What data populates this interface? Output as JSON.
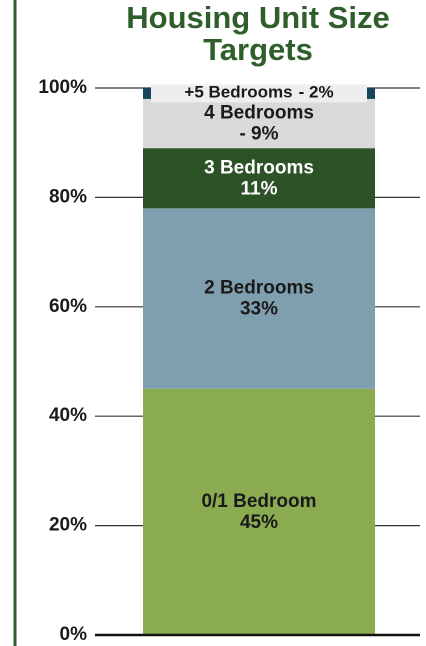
{
  "chart_data": {
    "type": "stacked_bar",
    "title": "Housing Unit Size Targets",
    "series": [
      {
        "name": "0/1 Bedroom",
        "color": "#8aab4f",
        "values": [
          45
        ],
        "value_labels": [
          "45%"
        ]
      },
      {
        "name": "2 Bedrooms",
        "color": "#7f9eae",
        "values": [
          33
        ],
        "value_labels": [
          "33%"
        ]
      },
      {
        "name": "3 Bedrooms",
        "color": "#2e5228",
        "values": [
          11
        ],
        "value_labels": [
          "11%"
        ]
      },
      {
        "name": "4 Bedrooms",
        "color": "#d9d9d9",
        "values": [
          9
        ],
        "value_labels": [
          "- 9%"
        ]
      },
      {
        "name": "+5 Bedrooms",
        "color": "#17455e",
        "values": [
          2
        ],
        "value_labels": [
          "- 2%"
        ]
      }
    ],
    "ylim": [
      0,
      100
    ],
    "yticks": [
      {
        "value": 0,
        "label": "0%"
      },
      {
        "value": 20,
        "label": "20%"
      },
      {
        "value": 40,
        "label": "40%"
      },
      {
        "value": 60,
        "label": "60%"
      },
      {
        "value": 80,
        "label": "80%"
      },
      {
        "value": 100,
        "label": "100%"
      }
    ],
    "grid": true
  }
}
